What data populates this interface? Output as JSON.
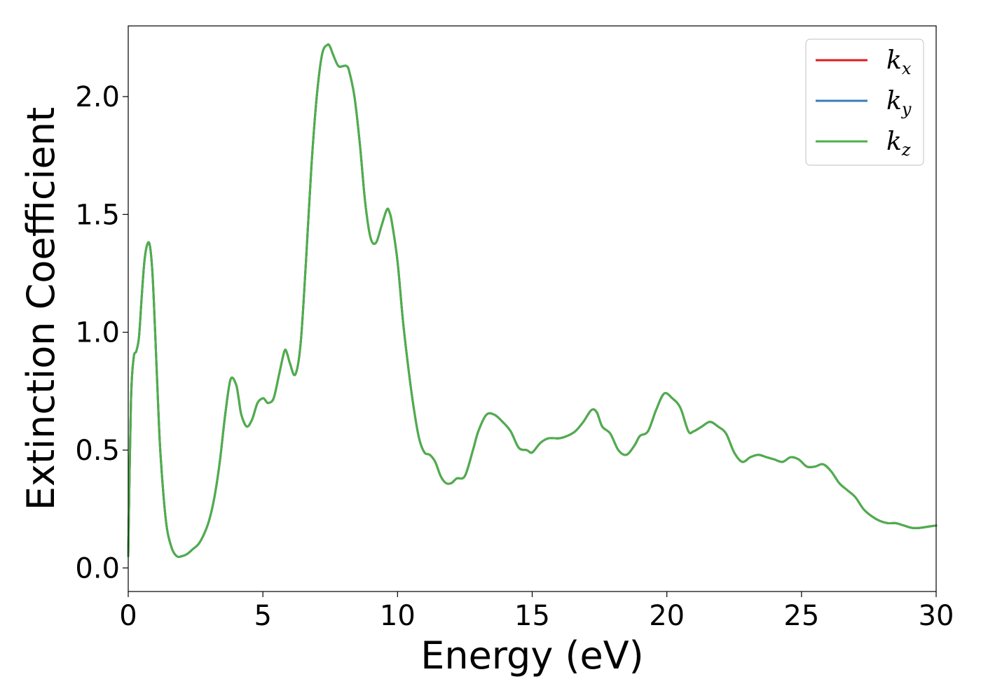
{
  "chart_data": {
    "type": "line",
    "title": "",
    "xlabel": "Energy (eV)",
    "ylabel": "Extinction Coefficient",
    "xlim": [
      0,
      30
    ],
    "ylim": [
      -0.1,
      2.3
    ],
    "xticks": [
      0,
      5,
      10,
      15,
      20,
      25,
      30
    ],
    "xtick_labels": [
      "0",
      "5",
      "10",
      "15",
      "20",
      "25",
      "30"
    ],
    "yticks": [
      0.0,
      0.5,
      1.0,
      1.5,
      2.0
    ],
    "ytick_labels": [
      "0.0",
      "0.5",
      "1.0",
      "1.5",
      "2.0"
    ],
    "grid": false,
    "legend_position": "top-right",
    "x": [
      0,
      0.1,
      0.2,
      0.3,
      0.4,
      0.5,
      0.6,
      0.7,
      0.8,
      0.9,
      1.0,
      1.1,
      1.2,
      1.4,
      1.6,
      1.8,
      2.0,
      2.2,
      2.4,
      2.6,
      2.8,
      3.0,
      3.2,
      3.4,
      3.6,
      3.8,
      4.0,
      4.1,
      4.2,
      4.4,
      4.6,
      4.8,
      5.0,
      5.1,
      5.2,
      5.4,
      5.6,
      5.8,
      5.9,
      6.0,
      6.2,
      6.4,
      6.6,
      6.8,
      7.0,
      7.2,
      7.4,
      7.5,
      7.6,
      7.8,
      8.0,
      8.1,
      8.2,
      8.4,
      8.6,
      8.8,
      9.0,
      9.2,
      9.4,
      9.6,
      9.7,
      9.8,
      10.0,
      10.2,
      10.4,
      10.6,
      10.8,
      11.0,
      11.2,
      11.4,
      11.6,
      11.8,
      12.0,
      12.2,
      12.5,
      12.8,
      13.0,
      13.3,
      13.6,
      13.9,
      14.2,
      14.5,
      14.8,
      15.0,
      15.3,
      15.6,
      16.0,
      16.3,
      16.6,
      16.9,
      17.2,
      17.4,
      17.6,
      17.9,
      18.2,
      18.5,
      18.8,
      19.0,
      19.3,
      19.6,
      19.9,
      20.2,
      20.5,
      20.8,
      21.0,
      21.3,
      21.6,
      21.9,
      22.2,
      22.5,
      22.8,
      23.1,
      23.4,
      23.7,
      24.0,
      24.3,
      24.6,
      24.9,
      25.2,
      25.5,
      25.8,
      26.1,
      26.4,
      26.7,
      27.0,
      27.3,
      27.6,
      27.9,
      28.2,
      28.5,
      28.8,
      29.1,
      29.4,
      29.7,
      30.0
    ],
    "series": [
      {
        "name": "k_x",
        "color": "#e41a1c",
        "values": [
          0.05,
          0.7,
          0.89,
          0.92,
          0.98,
          1.15,
          1.3,
          1.37,
          1.37,
          1.25,
          1.0,
          0.72,
          0.48,
          0.2,
          0.09,
          0.05,
          0.05,
          0.06,
          0.08,
          0.1,
          0.14,
          0.2,
          0.3,
          0.45,
          0.65,
          0.8,
          0.78,
          0.72,
          0.65,
          0.6,
          0.63,
          0.7,
          0.72,
          0.71,
          0.7,
          0.72,
          0.82,
          0.92,
          0.91,
          0.87,
          0.82,
          0.95,
          1.3,
          1.7,
          2.0,
          2.18,
          2.22,
          2.21,
          2.18,
          2.13,
          2.13,
          2.13,
          2.11,
          2.0,
          1.8,
          1.55,
          1.4,
          1.38,
          1.45,
          1.52,
          1.51,
          1.46,
          1.3,
          1.05,
          0.85,
          0.68,
          0.55,
          0.49,
          0.48,
          0.45,
          0.39,
          0.36,
          0.36,
          0.38,
          0.39,
          0.5,
          0.58,
          0.65,
          0.65,
          0.62,
          0.58,
          0.51,
          0.5,
          0.49,
          0.53,
          0.55,
          0.55,
          0.56,
          0.58,
          0.62,
          0.67,
          0.66,
          0.6,
          0.57,
          0.5,
          0.48,
          0.52,
          0.56,
          0.58,
          0.67,
          0.74,
          0.72,
          0.68,
          0.58,
          0.58,
          0.6,
          0.62,
          0.6,
          0.57,
          0.49,
          0.45,
          0.47,
          0.48,
          0.47,
          0.46,
          0.45,
          0.47,
          0.46,
          0.43,
          0.43,
          0.44,
          0.41,
          0.36,
          0.33,
          0.3,
          0.25,
          0.22,
          0.2,
          0.19,
          0.19,
          0.18,
          0.17,
          0.17,
          0.175,
          0.18
        ]
      },
      {
        "name": "k_y",
        "color": "#377eb8",
        "values": [
          0.05,
          0.7,
          0.89,
          0.92,
          0.98,
          1.15,
          1.3,
          1.37,
          1.37,
          1.25,
          1.0,
          0.72,
          0.48,
          0.2,
          0.09,
          0.05,
          0.05,
          0.06,
          0.08,
          0.1,
          0.14,
          0.2,
          0.3,
          0.45,
          0.65,
          0.8,
          0.78,
          0.72,
          0.65,
          0.6,
          0.63,
          0.7,
          0.72,
          0.71,
          0.7,
          0.72,
          0.82,
          0.92,
          0.91,
          0.87,
          0.82,
          0.95,
          1.3,
          1.7,
          2.0,
          2.18,
          2.22,
          2.21,
          2.18,
          2.13,
          2.13,
          2.13,
          2.11,
          2.0,
          1.8,
          1.55,
          1.4,
          1.38,
          1.45,
          1.52,
          1.51,
          1.46,
          1.3,
          1.05,
          0.85,
          0.68,
          0.55,
          0.49,
          0.48,
          0.45,
          0.39,
          0.36,
          0.36,
          0.38,
          0.39,
          0.5,
          0.58,
          0.65,
          0.65,
          0.62,
          0.58,
          0.51,
          0.5,
          0.49,
          0.53,
          0.55,
          0.55,
          0.56,
          0.58,
          0.62,
          0.67,
          0.66,
          0.6,
          0.57,
          0.5,
          0.48,
          0.52,
          0.56,
          0.58,
          0.67,
          0.74,
          0.72,
          0.68,
          0.58,
          0.58,
          0.6,
          0.62,
          0.6,
          0.57,
          0.49,
          0.45,
          0.47,
          0.48,
          0.47,
          0.46,
          0.45,
          0.47,
          0.46,
          0.43,
          0.43,
          0.44,
          0.41,
          0.36,
          0.33,
          0.3,
          0.25,
          0.22,
          0.2,
          0.19,
          0.19,
          0.18,
          0.17,
          0.17,
          0.175,
          0.18
        ]
      },
      {
        "name": "k_z",
        "color": "#4daf4a",
        "values": [
          0.05,
          0.7,
          0.89,
          0.92,
          0.98,
          1.15,
          1.3,
          1.37,
          1.37,
          1.25,
          1.0,
          0.72,
          0.48,
          0.2,
          0.09,
          0.05,
          0.05,
          0.06,
          0.08,
          0.1,
          0.14,
          0.2,
          0.3,
          0.45,
          0.65,
          0.8,
          0.78,
          0.72,
          0.65,
          0.6,
          0.63,
          0.7,
          0.72,
          0.71,
          0.7,
          0.72,
          0.82,
          0.92,
          0.91,
          0.87,
          0.82,
          0.95,
          1.3,
          1.7,
          2.0,
          2.18,
          2.22,
          2.21,
          2.18,
          2.13,
          2.13,
          2.13,
          2.11,
          2.0,
          1.8,
          1.55,
          1.4,
          1.38,
          1.45,
          1.52,
          1.51,
          1.46,
          1.3,
          1.05,
          0.85,
          0.68,
          0.55,
          0.49,
          0.48,
          0.45,
          0.39,
          0.36,
          0.36,
          0.38,
          0.39,
          0.5,
          0.58,
          0.65,
          0.65,
          0.62,
          0.58,
          0.51,
          0.5,
          0.49,
          0.53,
          0.55,
          0.55,
          0.56,
          0.58,
          0.62,
          0.67,
          0.66,
          0.6,
          0.57,
          0.5,
          0.48,
          0.52,
          0.56,
          0.58,
          0.67,
          0.74,
          0.72,
          0.68,
          0.58,
          0.58,
          0.6,
          0.62,
          0.6,
          0.57,
          0.49,
          0.45,
          0.47,
          0.48,
          0.47,
          0.46,
          0.45,
          0.47,
          0.46,
          0.43,
          0.43,
          0.44,
          0.41,
          0.36,
          0.33,
          0.3,
          0.25,
          0.22,
          0.2,
          0.19,
          0.19,
          0.18,
          0.17,
          0.17,
          0.175,
          0.18
        ]
      }
    ],
    "legend": [
      {
        "base": "k",
        "sub": "x",
        "color": "#e41a1c"
      },
      {
        "base": "k",
        "sub": "y",
        "color": "#377eb8"
      },
      {
        "base": "k",
        "sub": "z",
        "color": "#4daf4a"
      }
    ]
  }
}
